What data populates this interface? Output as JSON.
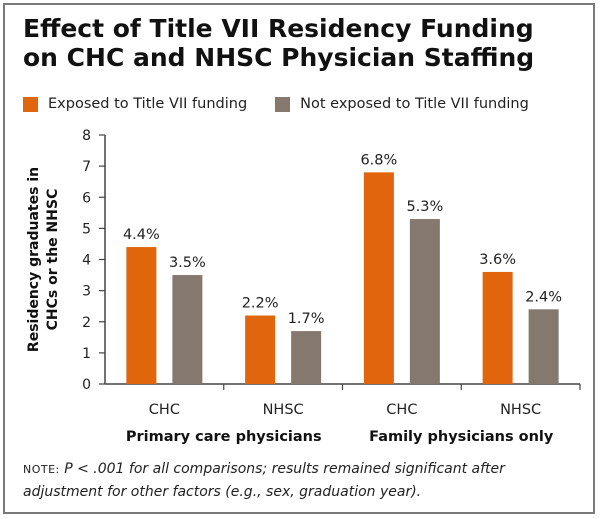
{
  "title_line1": "Effect of Title VII Residency Funding",
  "title_line2": "on CHC and NHSC Physician Staffing",
  "note_label": "NOTE:",
  "note_text": "P < .001 for all comparisons; results remained significant after adjustment for other factors (e.g., sex, graduation year).",
  "colors": {
    "exposed": "#e0650c",
    "not_exposed": "#85796f",
    "axis": "#444444"
  },
  "chart_data": {
    "type": "bar",
    "title": "Effect of Title VII Residency Funding on CHC and NHSC Physician Staffing",
    "ylabel_line1": "Residency graduates in",
    "ylabel_line2": "CHCs or the NHSC",
    "ylim": [
      0,
      8
    ],
    "yticks": [
      0,
      1,
      2,
      3,
      4,
      5,
      6,
      7,
      8
    ],
    "categories": [
      "CHC",
      "NHSC",
      "CHC",
      "NHSC"
    ],
    "groups": [
      {
        "label": "Primary care physicians",
        "categories": [
          "CHC",
          "NHSC"
        ]
      },
      {
        "label": "Family physicians only",
        "categories": [
          "CHC",
          "NHSC"
        ]
      }
    ],
    "series": [
      {
        "name": "Exposed to Title VII funding",
        "values": [
          4.4,
          2.2,
          6.8,
          3.6
        ],
        "labels": [
          "4.4%",
          "2.2%",
          "6.8%",
          "3.6%"
        ]
      },
      {
        "name": "Not exposed to Title VII funding",
        "values": [
          3.5,
          1.7,
          5.3,
          2.4
        ],
        "labels": [
          "3.5%",
          "1.7%",
          "5.3%",
          "2.4%"
        ]
      }
    ],
    "legend_position": "top",
    "grid": false
  }
}
